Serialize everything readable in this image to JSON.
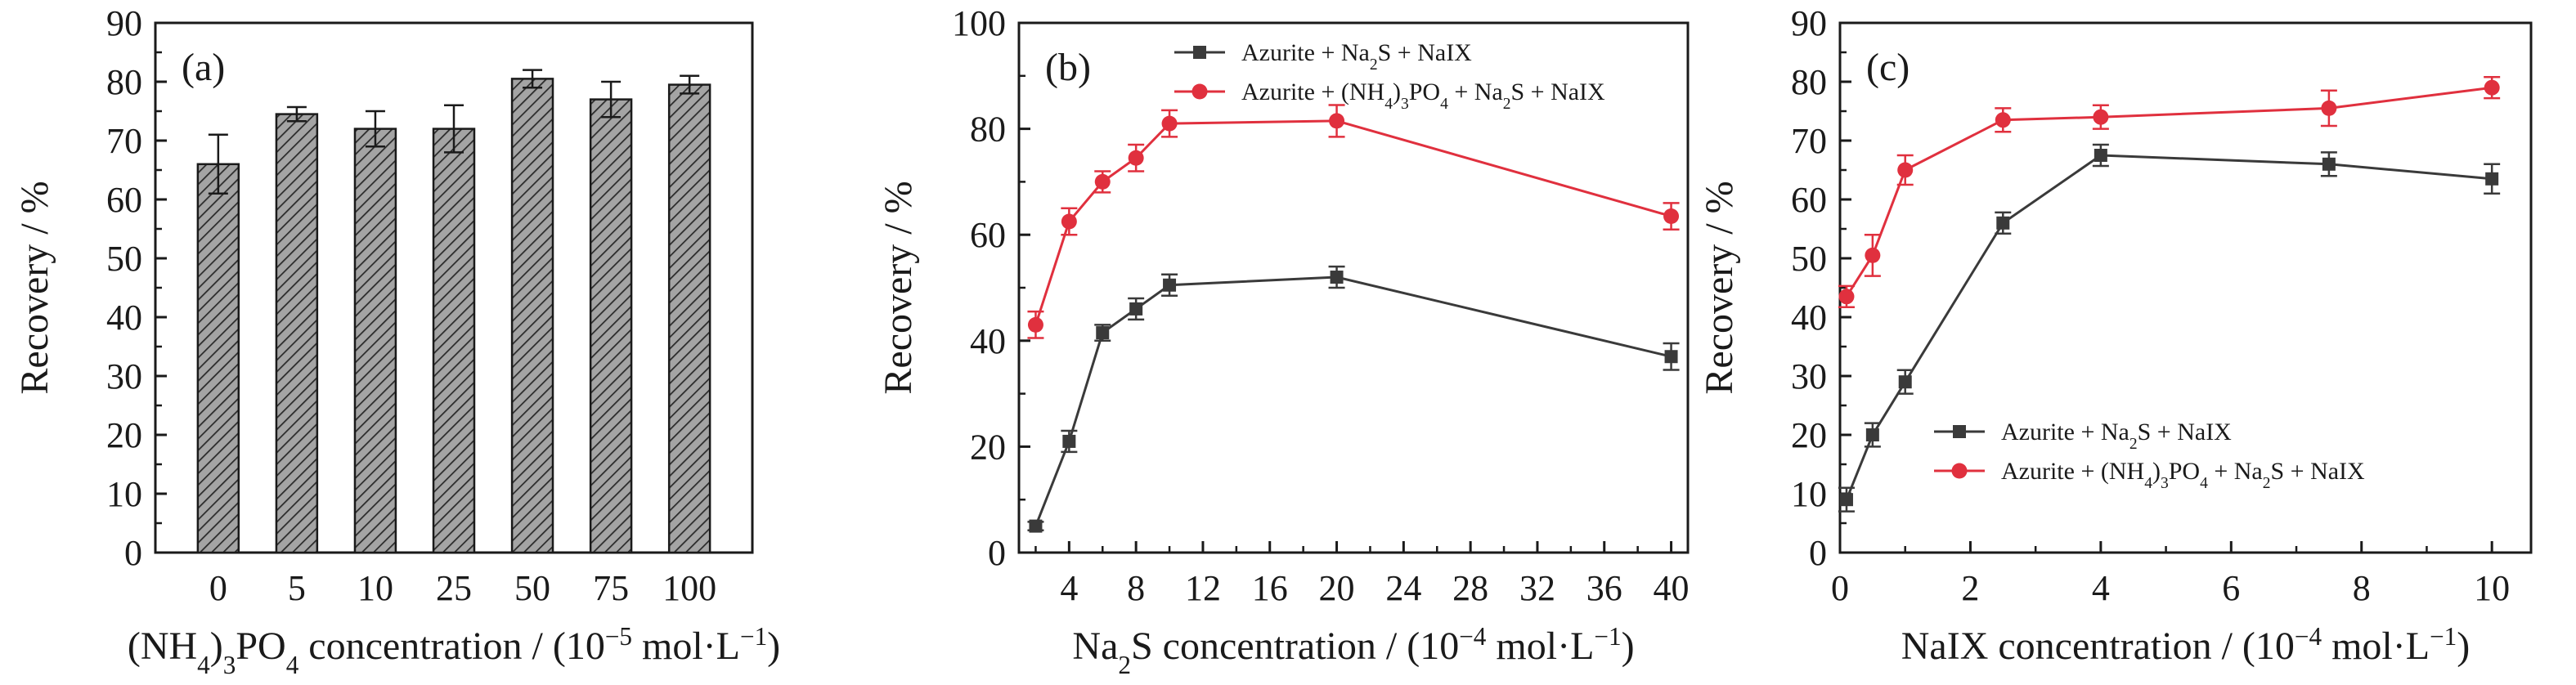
{
  "colors": {
    "black_series": "#3a3a3a",
    "red_series": "#e0303e",
    "bar_fill": "#9a9a9a",
    "axis": "#1a1a1a"
  },
  "chart_data": [
    {
      "type": "bar",
      "panel_label": "(a)",
      "categories": [
        "0",
        "5",
        "10",
        "25",
        "50",
        "75",
        "100"
      ],
      "values": [
        66,
        74.5,
        72,
        72,
        80.5,
        77,
        79.5
      ],
      "errors": [
        5,
        1.2,
        3,
        4,
        1.5,
        3,
        1.5
      ],
      "ylabel": "Recovery / %",
      "xlabel_parts": [
        "(NH",
        "4",
        ")",
        "3",
        "PO",
        "4",
        " concentration / (10",
        "−5",
        " mol·L",
        "−1",
        ")"
      ],
      "ylim": [
        0,
        90
      ],
      "yticks": [
        "0",
        "10",
        "20",
        "30",
        "40",
        "50",
        "60",
        "70",
        "80",
        "90"
      ],
      "legend": "none"
    },
    {
      "type": "line",
      "panel_label": "(b)",
      "xlim": [
        1,
        41
      ],
      "ylim": [
        0,
        100
      ],
      "xticks": [
        "4",
        "8",
        "12",
        "16",
        "20",
        "24",
        "28",
        "32",
        "36",
        "40"
      ],
      "yticks": [
        "0",
        "20",
        "40",
        "60",
        "80",
        "100"
      ],
      "ylabel": "Recovery / %",
      "xlabel_parts": [
        "Na",
        "2",
        "S concentration / (10",
        "−4",
        " mol·L",
        "−1",
        ")"
      ],
      "legend": "top-right",
      "series": [
        {
          "name_parts": [
            "Azurite + Na",
            "2",
            "S + NaIX"
          ],
          "marker": "square",
          "x": [
            2,
            4,
            6,
            8,
            10,
            20,
            40
          ],
          "y": [
            5,
            21,
            41.5,
            46,
            50.5,
            52,
            37
          ],
          "err": [
            0.8,
            2,
            1.5,
            2,
            2,
            2,
            2.5
          ]
        },
        {
          "name_parts": [
            "Azurite + (NH",
            "4",
            ")",
            "3",
            "PO",
            "4",
            " + Na",
            "2",
            "S + NaIX"
          ],
          "marker": "circle",
          "x": [
            2,
            4,
            6,
            8,
            10,
            20,
            40
          ],
          "y": [
            43,
            62.5,
            70,
            74.5,
            81,
            81.5,
            63.5
          ],
          "err": [
            2.5,
            2.5,
            2,
            2.5,
            2.5,
            3,
            2.5
          ]
        }
      ]
    },
    {
      "type": "line",
      "panel_label": "(c)",
      "xlim": [
        0,
        10.6
      ],
      "ylim": [
        0,
        90
      ],
      "xticks": [
        "0",
        "2",
        "4",
        "6",
        "8",
        "10"
      ],
      "yticks": [
        "0",
        "10",
        "20",
        "30",
        "40",
        "50",
        "60",
        "70",
        "80",
        "90"
      ],
      "ylabel": "Recovery / %",
      "xlabel_parts": [
        "NaIX concentration / (10",
        "−4",
        " mol·L",
        "−1",
        ")"
      ],
      "legend": "lower-right",
      "series": [
        {
          "name_parts": [
            "Azurite + Na",
            "2",
            "S + NaIX"
          ],
          "marker": "square",
          "x": [
            0.1,
            0.5,
            1,
            2.5,
            4,
            7.5,
            10
          ],
          "y": [
            9,
            20,
            29,
            56,
            67.5,
            66,
            63.5
          ],
          "err": [
            2,
            2,
            2,
            1.8,
            1.8,
            2,
            2.5
          ]
        },
        {
          "name_parts": [
            "Azurite + (NH",
            "4",
            ")",
            "3",
            "PO",
            "4",
            " + Na",
            "2",
            "S + NaIX"
          ],
          "marker": "circle",
          "x": [
            0.1,
            0.5,
            1,
            2.5,
            4,
            7.5,
            10
          ],
          "y": [
            43.5,
            50.5,
            65,
            73.5,
            74,
            75.5,
            79
          ],
          "err": [
            1.8,
            3.5,
            2.5,
            2,
            2,
            3,
            1.8
          ]
        }
      ]
    }
  ]
}
